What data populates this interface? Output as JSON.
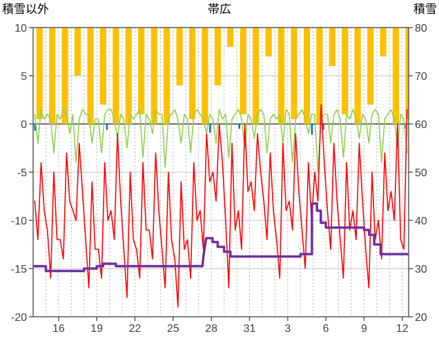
{
  "header": {
    "left_label": "積雪以外",
    "title": "帯広",
    "right_label": "積雪"
  },
  "chart_data": {
    "type": "line",
    "title": "帯広",
    "grid": true,
    "legend": "none",
    "left_axis": {
      "label": "積雪以外",
      "min": -20,
      "max": 10,
      "ticks": [
        10,
        5,
        0,
        -5,
        -10,
        -15,
        -20
      ]
    },
    "right_axis": {
      "label": "積雪",
      "min": 20,
      "max": 80,
      "ticks": [
        80,
        70,
        60,
        50,
        40,
        30,
        20
      ]
    },
    "x_axis": {
      "min": 0,
      "max": 29.5,
      "day_grid_interval": 1,
      "tick_positions": [
        2,
        5,
        8,
        11,
        14,
        17,
        20,
        23,
        26,
        29
      ],
      "tick_labels": [
        "16",
        "19",
        "22",
        "25",
        "28",
        "31",
        "3",
        "6",
        "9",
        "12"
      ]
    },
    "colors": {
      "sunshine": "#FFC000",
      "temperature": "#FF0000",
      "green": "#92D050",
      "precipitation": "#0070C0",
      "snow": "#7030A0",
      "grid": "#bfbfbf",
      "grid_dashed": "#b3b3b3",
      "axis": "#595959",
      "tick_text": "#404040"
    },
    "series": [
      {
        "name": "sunshine-bars",
        "type": "bar-from-top",
        "axis": "left",
        "color": "#FFC000",
        "bar_width_days": 0.5,
        "values": [
          9.5,
          10,
          10,
          5,
          10,
          8,
          10,
          10,
          9,
          10,
          10,
          6,
          9.5,
          10,
          6,
          2,
          9,
          10,
          3,
          10,
          9.5,
          10,
          10,
          4,
          9,
          10,
          8,
          3,
          10,
          9.5
        ]
      },
      {
        "name": "precipitation-ticks",
        "type": "tick-down",
        "axis": "left",
        "color": "#0070C0",
        "points": [
          [
            0.15,
            0.7
          ],
          [
            5.8,
            0.6
          ],
          [
            13.9,
            0.9
          ],
          [
            16.2,
            0.5
          ],
          [
            21.9,
            1.1
          ],
          [
            22.8,
            0.6
          ],
          [
            29.2,
            0.5
          ]
        ]
      },
      {
        "name": "green-line",
        "type": "line",
        "axis": "left",
        "color": "#92D050",
        "x_start": 0.125,
        "x_step": 0.25,
        "y": [
          1,
          -2,
          1.5,
          0.5,
          1,
          0.5,
          -3,
          1,
          0.5,
          1.5,
          1,
          -1,
          1,
          -4,
          0.5,
          1.5,
          1,
          1,
          -2,
          0.5,
          0.5,
          -3,
          1,
          1.5,
          1.5,
          0.5,
          -1.5,
          1,
          0.5,
          -2.5,
          1,
          0.5,
          1,
          1.5,
          -3.5,
          1,
          0.5,
          -1,
          1.5,
          1,
          1,
          -4.5,
          0.5,
          1,
          1.5,
          0.5,
          -2,
          1,
          0.5,
          -3,
          1,
          1.5,
          1,
          0.5,
          -1,
          1,
          0.5,
          -2,
          1.5,
          0.5,
          1,
          -3.5,
          0.5,
          1,
          1.5,
          0.5,
          -2.5,
          1,
          0.5,
          -1.5,
          1,
          1.5,
          1,
          -3,
          0.5,
          1,
          0.5,
          1,
          -2,
          1.5,
          1,
          -4,
          0.5,
          1,
          1.5,
          0.5,
          -1,
          1,
          1,
          -5,
          0.5,
          1,
          1,
          -2,
          1,
          1.5,
          0.5,
          -3.5,
          1,
          0.5,
          1.5,
          0.5,
          -1.5,
          1,
          0.5,
          -2,
          1,
          1.5,
          1,
          -4,
          0.5,
          1,
          1.5,
          0.5,
          -2.5,
          1,
          0.5,
          -3,
          1,
          1.5
        ]
      },
      {
        "name": "temperature-line",
        "type": "line",
        "axis": "left",
        "color": "#FF0000",
        "x_start": 0.125,
        "x_step": 0.25,
        "y": [
          -8,
          -12,
          -4,
          -9,
          -11,
          -16,
          -5,
          -12,
          -12,
          -14,
          -3,
          -8,
          -9,
          -10,
          -2,
          -7,
          -12,
          -17,
          -6,
          -13,
          -13,
          -16,
          -4,
          -10,
          -9,
          -12,
          -1,
          -8,
          -13,
          -18,
          -5,
          -12,
          -13,
          -16,
          -4,
          -11,
          -11,
          -14,
          -3,
          -9,
          -13,
          -17,
          -5,
          -12,
          -14,
          -19,
          -6,
          -13,
          -12,
          -16,
          -4,
          -10,
          -9,
          -13,
          -1,
          -6,
          -5,
          -8,
          0,
          -4,
          -10,
          -17,
          -2,
          -11,
          -9,
          -13,
          0,
          -7,
          -6,
          -9,
          -1,
          -5,
          -8,
          -12,
          -3,
          -9,
          -12,
          -16,
          -2,
          -9,
          -8,
          -11,
          -1,
          -7,
          -11,
          -15,
          -4,
          -10,
          -5,
          -8,
          2,
          -4,
          -9,
          -13,
          -2,
          -8,
          -12,
          -16,
          -4,
          -11,
          -9,
          -12,
          -2,
          -8,
          -13,
          -17,
          -5,
          -12,
          -10,
          -14,
          -3,
          -9,
          -7,
          -10,
          0,
          -12,
          -13,
          1.5,
          -6,
          -10
        ]
      },
      {
        "name": "snow-depth-line",
        "type": "step-line",
        "axis": "right",
        "color": "#7030A0",
        "points": [
          [
            0,
            30.5
          ],
          [
            1,
            30.5
          ],
          [
            1,
            29.5
          ],
          [
            4,
            29.5
          ],
          [
            4,
            30
          ],
          [
            5,
            30
          ],
          [
            5,
            30.5
          ],
          [
            5.5,
            30.5
          ],
          [
            5.5,
            31
          ],
          [
            6.5,
            31
          ],
          [
            6.5,
            30.5
          ],
          [
            13.3,
            30.5
          ],
          [
            13.4,
            33
          ],
          [
            13.6,
            36.3
          ],
          [
            14.1,
            36.3
          ],
          [
            14.1,
            35.5
          ],
          [
            14.5,
            35.5
          ],
          [
            14.5,
            34.5
          ],
          [
            15,
            34.5
          ],
          [
            15,
            33.5
          ],
          [
            15.5,
            33.5
          ],
          [
            15.5,
            32.5
          ],
          [
            21,
            32.5
          ],
          [
            21,
            33
          ],
          [
            21.9,
            33
          ],
          [
            21.9,
            43.5
          ],
          [
            22.3,
            43.5
          ],
          [
            22.3,
            42
          ],
          [
            22.6,
            42
          ],
          [
            22.6,
            39.5
          ],
          [
            23,
            39.5
          ],
          [
            23,
            38.5
          ],
          [
            26,
            38.5
          ],
          [
            26,
            38
          ],
          [
            26.4,
            38
          ],
          [
            26.4,
            37
          ],
          [
            26.8,
            37
          ],
          [
            26.8,
            35
          ],
          [
            27.3,
            35
          ],
          [
            27.3,
            33
          ],
          [
            29.5,
            33
          ]
        ]
      }
    ]
  }
}
